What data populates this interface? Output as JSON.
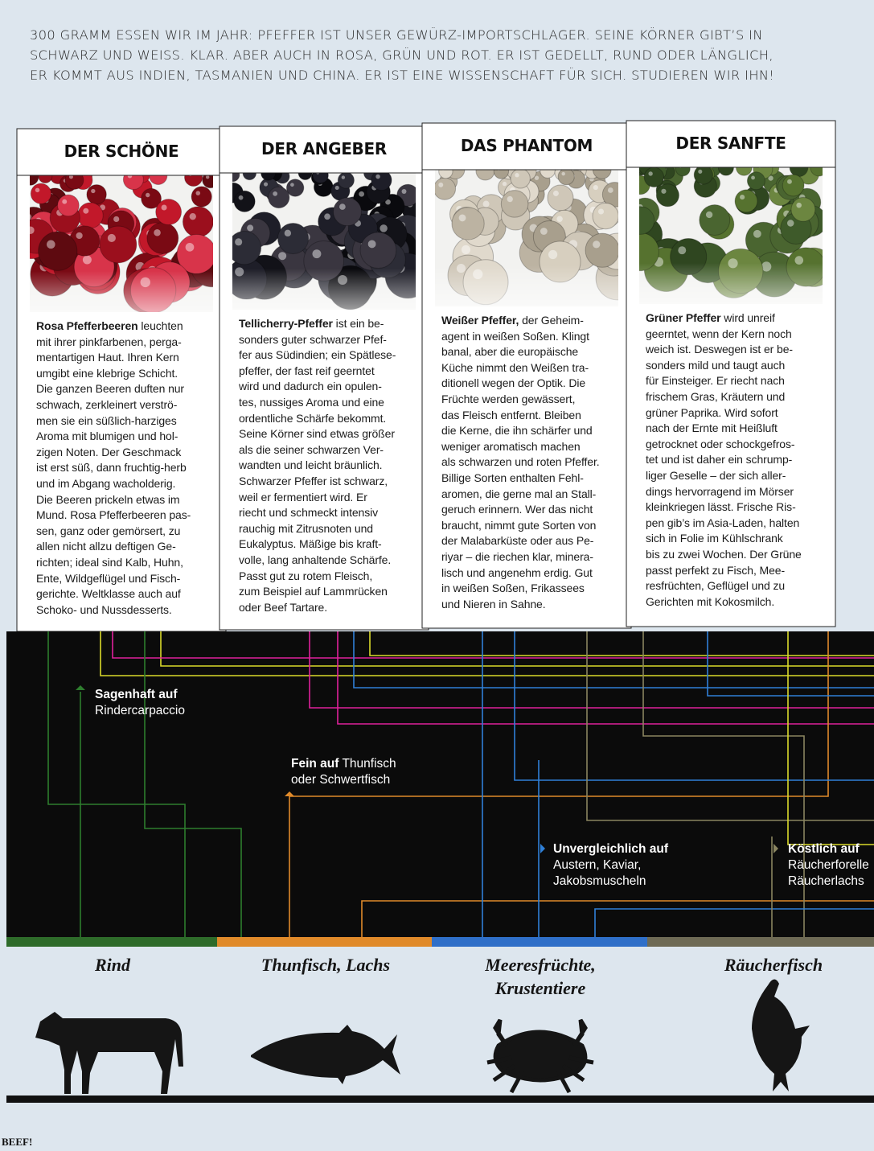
{
  "intro": {
    "lines": [
      "300 GRAMM ESSEN WIR IM JAHR: PFEFFER IST UNSER GEWÜRZ-IMPORTSCHLAGER. SEINE KÖRNER GIBT’S IN",
      "SCHWARZ UND WEISS. KLAR. ABER AUCH IN ROSA, GRÜN UND ROT. ER IST GEDELLT, RUND ODER LÄNGLICH,",
      "ER KOMMT AUS INDIEN, TASMANIEN UND CHINA. ER IST EINE WISSENSCHAFT FÜR SICH. STUDIEREN WIR IHN!"
    ]
  },
  "cards": [
    {
      "title": "DER SCHÖNE",
      "lead": "Rosa Pfefferbeeren",
      "lines": [
        " leuchten",
        "mit ihrer pinkfarbenen, perga-",
        "mentartigen Haut. Ihren Kern",
        "umgibt eine klebrige Schicht.",
        "Die ganzen Beeren duften nur",
        "schwach, zerkleinert verströ-",
        "men sie ein süßlich-harziges",
        "Aroma mit blumigen und hol-",
        "zigen Noten. Der Geschmack",
        "ist erst süß, dann fruchtig-herb",
        "und im Abgang wacholderig.",
        "Die Beeren prickeln etwas im",
        "Mund. Rosa Pfefferbeeren pas-",
        "sen, ganz oder gemörsert, zu",
        "allen nicht allzu deftigen Ge-",
        "richten; ideal sind Kalb, Huhn,",
        "Ente, Wildgeflügel und Fisch-",
        "gerichte. Weltklasse auch auf",
        "Schoko- und Nussdesserts."
      ]
    },
    {
      "title": "DER ANGEBER",
      "lead": "Tellicherry-Pfeffer",
      "lines": [
        " ist ein be-",
        "sonders guter schwarzer Pfef-",
        "fer aus Südindien; ein Spätlese-",
        "pfeffer, der fast reif geerntet",
        "wird und dadurch ein opulen-",
        "tes, nussiges Aroma und eine",
        "ordentliche Schärfe bekommt.",
        "Seine Körner sind etwas größer",
        "als die seiner schwarzen Ver-",
        "wandten und leicht bräunlich.",
        "Schwarzer Pfeffer ist schwarz,",
        "weil er fermentiert wird. Er",
        "riecht und schmeckt intensiv",
        "rauchig mit Zitrusnoten und",
        "Eukalyptus. Mäßige bis kraft-",
        "volle, lang anhaltende Schärfe.",
        "Passt gut zu rotem Fleisch,",
        "zum Beispiel auf Lammrücken",
        "oder Beef Tartare."
      ]
    },
    {
      "title": "DAS PHANTOM",
      "lead": "Weißer Pfeffer,",
      "lines": [
        " der Geheim-",
        "agent in weißen Soßen. Klingt",
        "banal, aber die europäische",
        "Küche nimmt den Weißen tra-",
        "ditionell wegen der Optik. Die",
        "Früchte werden gewässert,",
        "das Fleisch entfernt. Bleiben",
        "die Kerne, die ihn schärfer und",
        "weniger aromatisch machen",
        "als schwarzen und roten Pfeffer.",
        "Billige Sorten enthalten Fehl-",
        "aromen, die gerne mal an Stall-",
        "geruch erinnern. Wer das nicht",
        "braucht, nimmt gute Sorten von",
        "der Malabarküste oder aus Pe-",
        "riyar – die riechen klar, minera-",
        "lisch und angenehm erdig. Gut",
        "in weißen Soßen, Frikassees",
        "und Nieren in Sahne."
      ]
    },
    {
      "title": "DER SANFTE",
      "lead": "Grüner Pfeffer",
      "lines": [
        " wird unreif",
        "geerntet, wenn der Kern noch",
        "weich ist. Deswegen ist er be-",
        "sonders mild und taugt auch",
        "für Einsteiger. Er riecht nach",
        "frischem Gras, Kräutern und",
        "grüner Paprika. Wird sofort",
        "nach der Ernte mit Heißluft",
        "getrocknet oder schockgefros-",
        "tet und ist daher ein schrump-",
        "liger Geselle – der sich aller-",
        "dings hervorragend im Mörser",
        "kleinkriegen lässt. Frische Ris-",
        "pen gib’s im Asia-Laden, halten",
        "sich in Folie im Kühlschrank",
        "bis zu zwei Wochen. Der Grüne",
        "passt perfekt zu Fisch, Mee-",
        "resfrüchten, Geflügel und zu",
        "Gerichten mit Kokosmilch."
      ]
    }
  ],
  "pairings": [
    {
      "bold": "Sagenhaft auf",
      "lines": [
        "Rindercarpaccio"
      ]
    },
    {
      "bold": "Fein auf",
      "lines": [
        " Thunfisch",
        "oder Schwertfisch"
      ]
    },
    {
      "bold": "Unvergleichlich auf",
      "lines": [
        "Austern, Kaviar,",
        "Jakobsmuscheln"
      ]
    },
    {
      "bold": "Köstlich auf",
      "lines": [
        "Räucherforelle",
        "Räucherlachs"
      ]
    }
  ],
  "categories": [
    {
      "lines": [
        "Rind"
      ]
    },
    {
      "lines": [
        "Thunfisch, Lachs"
      ]
    },
    {
      "lines": [
        "Meeresfrüchte,",
        "Krustentiere"
      ]
    },
    {
      "lines": [
        "Räucherfisch"
      ]
    }
  ],
  "footer": "BEEF!"
}
